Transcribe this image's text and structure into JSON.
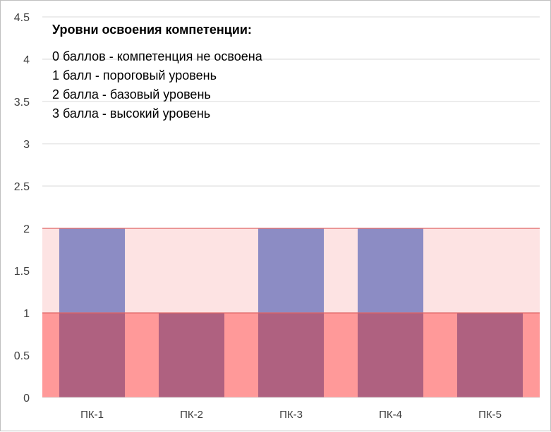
{
  "chart_data": {
    "type": "bar",
    "categories": [
      "ПК-1",
      "ПК-2",
      "ПК-3",
      "ПК-4",
      "ПК-5"
    ],
    "values": [
      2,
      1,
      2,
      2,
      1
    ],
    "ylim": [
      0,
      4.5
    ],
    "yticks": [
      "0",
      "0.5",
      "1",
      "1.5",
      "2",
      "2.5",
      "3",
      "3.5",
      "4",
      "4.5"
    ],
    "ytick_values": [
      0,
      0.5,
      1,
      1.5,
      2,
      2.5,
      3,
      3.5,
      4,
      4.5
    ],
    "bands": [
      {
        "from": 0,
        "to": 1,
        "color": "#ff9999"
      },
      {
        "from": 1,
        "to": 2,
        "color": "#fde3e3"
      }
    ],
    "band_line_color": "#e06666",
    "bar_color": "#8c8cc4",
    "bar_overlap_color": "#af6180",
    "grid": true,
    "legend": {
      "title": "Уровни освоения компетенции:",
      "lines": [
        "0 баллов - компетенция не освоена",
        "1 балл - пороговый уровень",
        "2 балла - базовый уровень",
        "3 балла - высокий уровень"
      ]
    }
  }
}
